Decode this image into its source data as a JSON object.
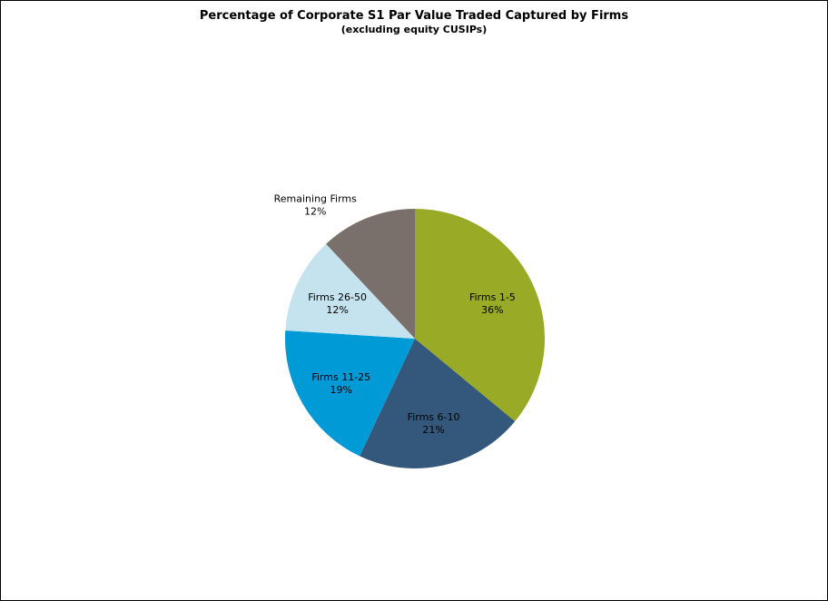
{
  "chart_data": {
    "type": "pie",
    "title": "Percentage of Corporate S1 Par Value Traded Captured by Firms",
    "subtitle": "(excluding equity CUSIPs)",
    "slices": [
      {
        "label": "Firms 1-5",
        "value": 36,
        "value_label": "36%",
        "color": "#98AA26"
      },
      {
        "label": "Firms 6-10",
        "value": 21,
        "value_label": "21%",
        "color": "#34587B"
      },
      {
        "label": "Firms 11-25",
        "value": 19,
        "value_label": "19%",
        "color": "#009BD6"
      },
      {
        "label": "Firms 26-50",
        "value": 12,
        "value_label": "12%",
        "color": "#C5E3EE"
      },
      {
        "label": "Remaining Firms",
        "value": 12,
        "value_label": "12%",
        "color": "#7A706B"
      }
    ],
    "start_angle": "12 o'clock",
    "direction": "clockwise",
    "legend": "none"
  }
}
